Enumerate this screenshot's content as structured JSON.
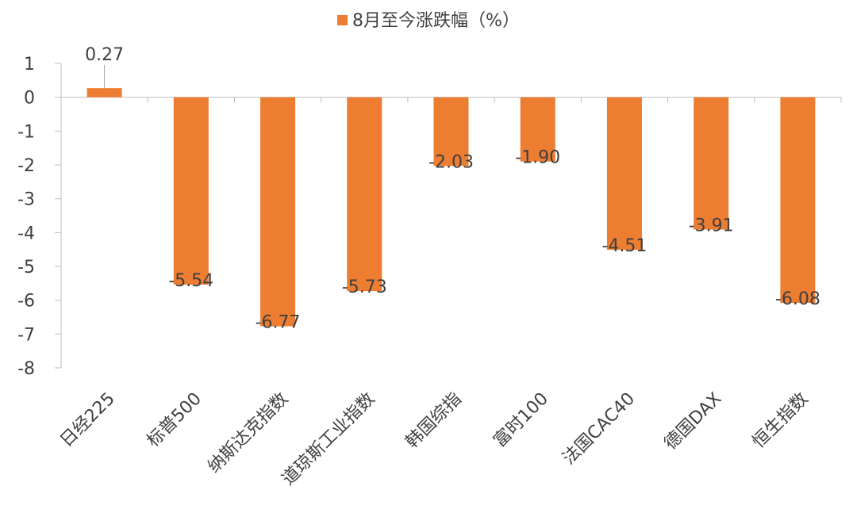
{
  "chart_data": {
    "type": "bar",
    "title": "",
    "xlabel": "",
    "ylabel": "",
    "categories": [
      "日经225",
      "标普500",
      "纳斯达克指数",
      "道琼斯工业指数",
      "韩国综指",
      "富时100",
      "法国CAC40",
      "德国DAX",
      "恒生指数"
    ],
    "series": [
      {
        "name": "8月至今涨跌幅（%）",
        "values": [
          0.27,
          -5.54,
          -6.77,
          -5.73,
          -2.03,
          -1.9,
          -4.51,
          -3.91,
          -6.08
        ],
        "labels": [
          "0.27",
          "-5.54",
          "-6.77",
          "-5.73",
          "-2.03",
          "-1.90",
          "-4.51",
          "-3.91",
          "-6.08"
        ],
        "color": "#ED7D31"
      }
    ],
    "yticks": [
      "1",
      "0",
      "-1",
      "-2",
      "-3",
      "-4",
      "-5",
      "-6",
      "-7",
      "-8"
    ],
    "ylim": [
      -8,
      1
    ],
    "grid": false,
    "legend_position": "top-center"
  }
}
